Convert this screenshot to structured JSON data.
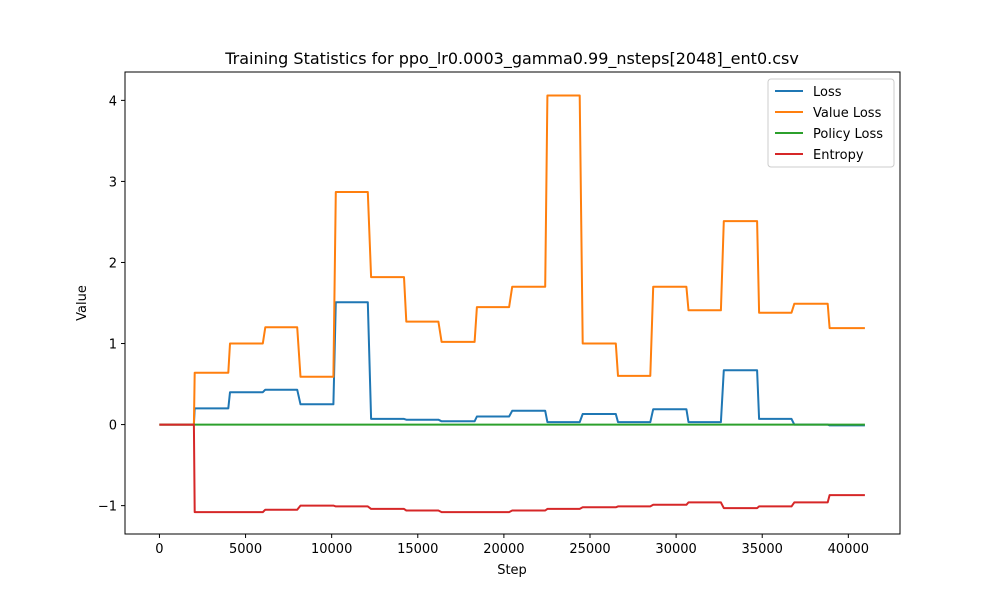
{
  "chart_data": {
    "type": "line",
    "title": "Training Statistics for ppo_lr0.0003_gamma0.99_nsteps[2048]_ent0.csv",
    "xlabel": "Step",
    "ylabel": "Value",
    "xlim": [
      -2000,
      43000
    ],
    "ylim": [
      -1.35,
      4.35
    ],
    "xticks": [
      0,
      5000,
      10000,
      15000,
      20000,
      25000,
      30000,
      35000,
      40000
    ],
    "xtick_labels": [
      "0",
      "5000",
      "10000",
      "15000",
      "20000",
      "25000",
      "30000",
      "35000",
      "40000"
    ],
    "yticks": [
      -1,
      0,
      1,
      2,
      3,
      4
    ],
    "ytick_labels": [
      "−1",
      "0",
      "1",
      "2",
      "3",
      "4"
    ],
    "grid": false,
    "legend_position": "top-right",
    "series": [
      {
        "name": "Loss",
        "color": "#1f77b4",
        "x": [
          0,
          2000,
          2048,
          4000,
          4096,
          6000,
          6144,
          8000,
          8192,
          10100,
          10240,
          12100,
          12288,
          14200,
          14336,
          16200,
          16384,
          18300,
          18432,
          20300,
          20480,
          22400,
          22528,
          24400,
          24576,
          26500,
          26624,
          28500,
          28672,
          30600,
          30720,
          32600,
          32768,
          34700,
          34816,
          36700,
          36864,
          38800,
          38912,
          40960
        ],
        "y": [
          0,
          0,
          0.2,
          0.2,
          0.4,
          0.4,
          0.43,
          0.43,
          0.25,
          0.25,
          1.51,
          1.51,
          0.07,
          0.07,
          0.06,
          0.06,
          0.04,
          0.04,
          0.1,
          0.1,
          0.17,
          0.17,
          0.03,
          0.03,
          0.13,
          0.13,
          0.03,
          0.03,
          0.19,
          0.19,
          0.03,
          0.03,
          0.67,
          0.67,
          0.07,
          0.07,
          0.0,
          0.0,
          -0.01,
          -0.01
        ]
      },
      {
        "name": "Value Loss",
        "color": "#ff7f0e",
        "x": [
          0,
          2000,
          2048,
          4000,
          4096,
          6000,
          6144,
          8000,
          8192,
          10100,
          10240,
          12100,
          12288,
          14200,
          14336,
          16200,
          16384,
          18300,
          18432,
          20300,
          20480,
          22400,
          22528,
          24400,
          24576,
          26500,
          26624,
          28500,
          28672,
          30600,
          30720,
          32600,
          32768,
          34700,
          34816,
          36700,
          36864,
          38800,
          38912,
          40960
        ],
        "y": [
          0,
          0,
          0.64,
          0.64,
          1.0,
          1.0,
          1.2,
          1.2,
          0.59,
          0.59,
          2.87,
          2.87,
          1.82,
          1.82,
          1.27,
          1.27,
          1.02,
          1.02,
          1.45,
          1.45,
          1.7,
          1.7,
          4.06,
          4.06,
          1.0,
          1.0,
          0.6,
          0.6,
          1.7,
          1.7,
          1.41,
          1.41,
          2.51,
          2.51,
          1.38,
          1.38,
          1.49,
          1.49,
          1.19,
          1.19
        ]
      },
      {
        "name": "Policy Loss",
        "color": "#2ca02c",
        "x": [
          0,
          2000,
          2048,
          40960
        ],
        "y": [
          0,
          0,
          0,
          0
        ]
      },
      {
        "name": "Entropy",
        "color": "#d62728",
        "x": [
          0,
          2000,
          2048,
          4000,
          4096,
          6000,
          6144,
          8000,
          8192,
          10100,
          10240,
          12100,
          12288,
          14200,
          14336,
          16200,
          16384,
          18300,
          18432,
          20300,
          20480,
          22400,
          22528,
          24400,
          24576,
          26500,
          26624,
          28500,
          28672,
          30600,
          30720,
          32600,
          32768,
          34700,
          34816,
          36700,
          36864,
          38800,
          38912,
          40960
        ],
        "y": [
          0,
          0,
          -1.08,
          -1.08,
          -1.08,
          -1.08,
          -1.05,
          -1.05,
          -1.0,
          -1.0,
          -1.01,
          -1.01,
          -1.04,
          -1.04,
          -1.06,
          -1.06,
          -1.08,
          -1.08,
          -1.08,
          -1.08,
          -1.06,
          -1.06,
          -1.04,
          -1.04,
          -1.02,
          -1.02,
          -1.01,
          -1.01,
          -0.99,
          -0.99,
          -0.96,
          -0.96,
          -1.03,
          -1.03,
          -1.01,
          -1.01,
          -0.96,
          -0.96,
          -0.87,
          -0.87
        ]
      }
    ]
  }
}
